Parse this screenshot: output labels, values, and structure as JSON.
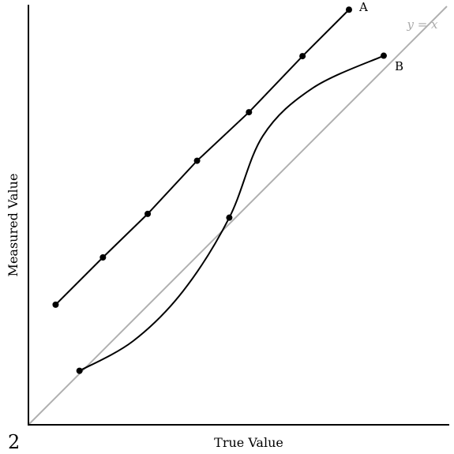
{
  "panel_label": "2",
  "chart_data": {
    "type": "line",
    "title": "",
    "xlabel": "True Value",
    "ylabel": "Measured Value",
    "xlim": [
      0,
      10
    ],
    "ylim": [
      0,
      10
    ],
    "grid": false,
    "series": [
      {
        "name": "A",
        "color": "#000000",
        "points": [
          [
            0.65,
            2.87
          ],
          [
            1.78,
            4.0
          ],
          [
            2.85,
            5.04
          ],
          [
            4.03,
            6.31
          ],
          [
            5.27,
            7.47
          ],
          [
            6.55,
            8.81
          ],
          [
            7.66,
            9.92
          ]
        ],
        "markers": "all",
        "interpolation": "linear"
      },
      {
        "name": "B",
        "color": "#000000",
        "points": [
          [
            1.22,
            1.29
          ],
          [
            2.5,
            2.0
          ],
          [
            3.7,
            3.2
          ],
          [
            4.8,
            4.95
          ],
          [
            5.6,
            6.9
          ],
          [
            6.8,
            8.05
          ],
          [
            8.49,
            8.82
          ]
        ],
        "marker_points": [
          [
            1.22,
            1.29
          ],
          [
            4.8,
            4.95
          ],
          [
            8.49,
            8.82
          ]
        ],
        "markers": "endpoints-and-crossing",
        "interpolation": "smooth"
      },
      {
        "name": "y = x",
        "color": "#b0b0b0",
        "points": [
          [
            0,
            0
          ],
          [
            10,
            10
          ]
        ],
        "markers": "none",
        "interpolation": "linear"
      }
    ]
  }
}
